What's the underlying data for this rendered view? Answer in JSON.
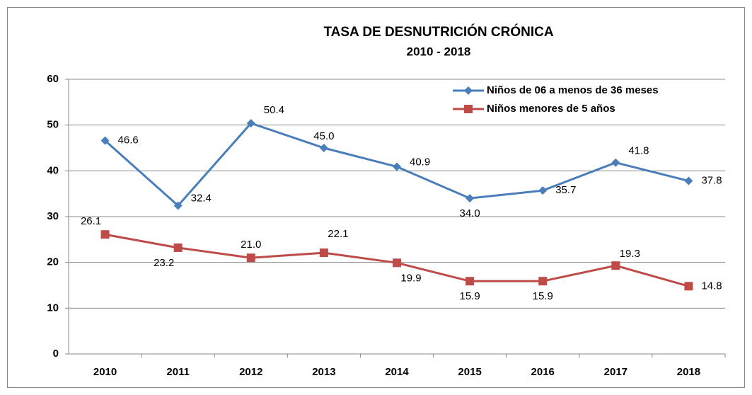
{
  "chart_data": {
    "type": "line",
    "title": "TASA  DE  DESNUTRICIÓN  CRÓNICA",
    "subtitle": "2010 - 2018",
    "categories": [
      "2010",
      "2011",
      "2012",
      "2013",
      "2014",
      "2015",
      "2016",
      "2017",
      "2018"
    ],
    "series": [
      {
        "name": "Niños de 06 a menos de 36 meses",
        "color": "#4a7ebb",
        "marker": "diamond",
        "values": [
          46.6,
          32.4,
          50.4,
          45.0,
          40.9,
          34.0,
          35.7,
          41.8,
          37.8
        ],
        "value_labels": [
          "46.6",
          "32.4",
          "50.4",
          "45.0",
          "40.9",
          "34.0",
          "35.7",
          "41.8",
          "37.8"
        ]
      },
      {
        "name": "Niños menores de 5 años",
        "color": "#be4b48",
        "marker": "square",
        "values": [
          26.1,
          23.2,
          21.0,
          22.1,
          19.9,
          15.9,
          15.9,
          19.3,
          14.8
        ],
        "value_labels": [
          "26.1",
          "23.2",
          "21.0",
          "22.1",
          "19.9",
          "15.9",
          "15.9",
          "19.3",
          "14.8"
        ]
      }
    ],
    "ylim": [
      0,
      60
    ],
    "yticks": [
      0,
      10,
      20,
      30,
      40,
      50,
      60
    ],
    "grid": true,
    "legend": "top-right"
  }
}
